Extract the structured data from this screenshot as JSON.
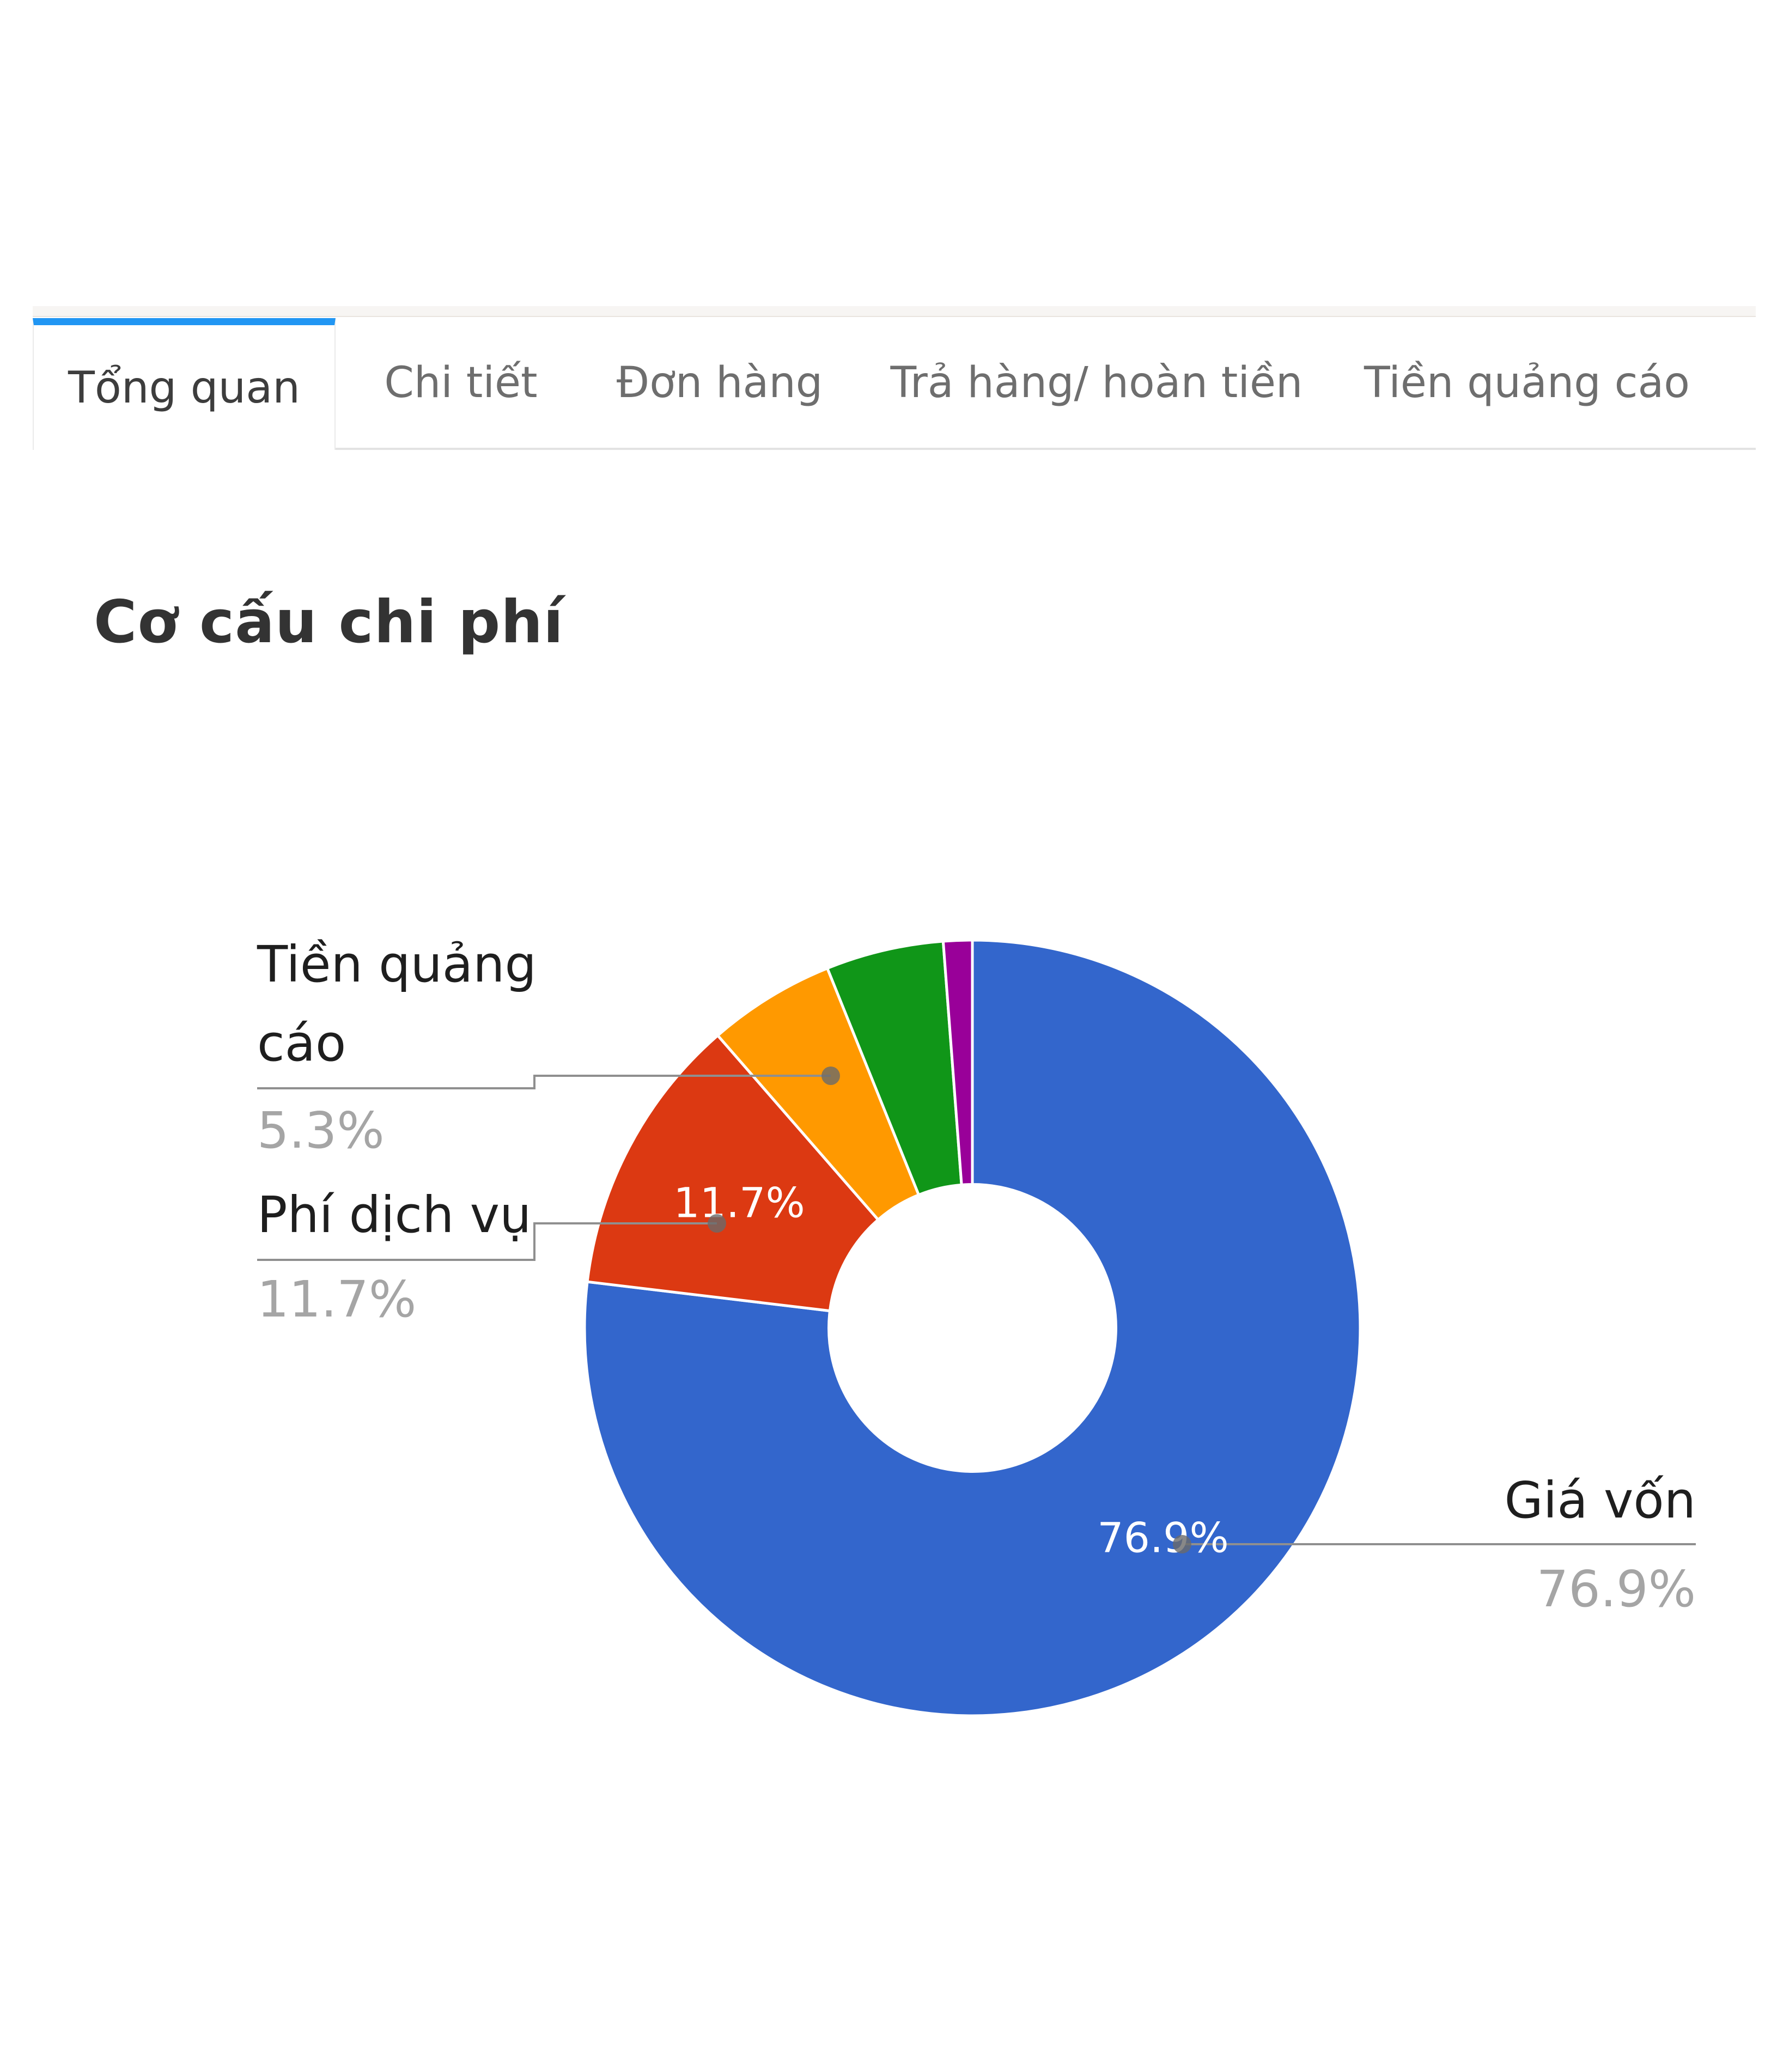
{
  "tabs": [
    {
      "label": "Tổng quan",
      "active": true
    },
    {
      "label": "Chi tiết",
      "active": false
    },
    {
      "label": "Đơn hàng",
      "active": false
    },
    {
      "label": "Trả hàng/ hoàn tiền",
      "active": false
    },
    {
      "label": "Tiền quảng cáo",
      "active": false
    }
  ],
  "section_title": "Cơ cấu chi phí",
  "chart_data": {
    "type": "pie",
    "title": "Cơ cấu chi phí",
    "donut": true,
    "inner_radius_ratio": 0.37,
    "start_angle_deg": 0,
    "direction": "clockwise",
    "legend": "none",
    "labels": [
      "Giá vốn",
      "Phí dịch vụ",
      "Tiền quảng cáo",
      "",
      ""
    ],
    "values": [
      76.9,
      11.7,
      5.3,
      4.9,
      1.2
    ],
    "colors": [
      "#3366CC",
      "#DC3912",
      "#FF9900",
      "#109618",
      "#990099"
    ],
    "display_percents": [
      "76.9%",
      "11.7%",
      "5.3%",
      "",
      ""
    ]
  },
  "callouts": {
    "adv": {
      "name": "Tiền quảng cáo",
      "pct": "5.3%"
    },
    "svc": {
      "name": "Phí dịch vụ",
      "pct": "11.7%"
    },
    "cogs": {
      "name": "Giá vốn",
      "pct": "76.9%"
    },
    "slice_labels": {
      "cogs": "76.9%",
      "svc": "11.7%"
    }
  },
  "colors": {
    "active_tab_accent": "#2196f3",
    "leader_line": "#8f8f8f",
    "anchor_dot": "#6a6a6a",
    "pct_text": "#a5a5a5"
  }
}
